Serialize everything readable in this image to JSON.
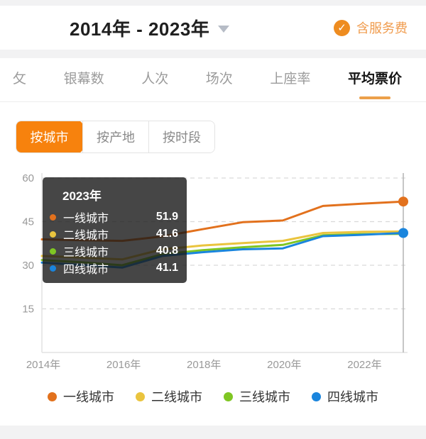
{
  "header": {
    "title": "2014年 - 2023年",
    "caret_icon": "dropdown-caret",
    "service_fee": {
      "label": "含服务费",
      "check_icon": "check-circle",
      "accent": "#ee8c20",
      "text_color": "#f09b4c"
    }
  },
  "tabs": {
    "items": [
      {
        "label": "攵",
        "active": false
      },
      {
        "label": "银幕数",
        "active": false
      },
      {
        "label": "人次",
        "active": false
      },
      {
        "label": "场次",
        "active": false
      },
      {
        "label": "上座率",
        "active": false
      },
      {
        "label": "平均票价",
        "active": true
      }
    ],
    "underline_color": "#eca04a"
  },
  "segmented": {
    "items": [
      {
        "label": "按城市",
        "active": true
      },
      {
        "label": "按产地",
        "active": false
      },
      {
        "label": "按时段",
        "active": false
      }
    ],
    "active_bg": "#f7820d"
  },
  "tooltip": {
    "title": "2023年",
    "rows": [
      {
        "name": "一线城市",
        "value": "51.9",
        "color": "#e2711d"
      },
      {
        "name": "二线城市",
        "value": "41.6",
        "color": "#eac43e"
      },
      {
        "name": "三线城市",
        "value": "40.8",
        "color": "#7fc623"
      },
      {
        "name": "四线城市",
        "value": "41.1",
        "color": "#1a85dd"
      }
    ]
  },
  "chart_data": {
    "type": "line",
    "title": "平均票价（按城市）2014-2023",
    "x": [
      2014,
      2015,
      2016,
      2017,
      2018,
      2019,
      2020,
      2021,
      2022,
      2023
    ],
    "x_ticks": [
      2014,
      2016,
      2018,
      2020,
      2022
    ],
    "x_tick_labels": [
      "2014年",
      "2016年",
      "2018年",
      "2020年",
      "2022年"
    ],
    "ylim": [
      0,
      60
    ],
    "y_ticks": [
      15,
      30,
      45,
      60
    ],
    "grid": "dashed-horizontal",
    "legend_position": "bottom",
    "hover_year": 2023,
    "series": [
      {
        "name": "一线城市",
        "color": "#e2711d",
        "end_dot": true,
        "values": [
          38.9,
          38.6,
          38.4,
          39.9,
          42.4,
          44.8,
          45.4,
          50.4,
          51.2,
          51.9
        ]
      },
      {
        "name": "二线城市",
        "color": "#eac43e",
        "end_dot": false,
        "values": [
          33.2,
          32.6,
          32.0,
          35.5,
          36.8,
          37.6,
          38.4,
          41.1,
          41.5,
          41.6
        ]
      },
      {
        "name": "三线城市",
        "color": "#7fc623",
        "end_dot": false,
        "values": [
          31.8,
          31.0,
          30.0,
          33.8,
          35.2,
          36.2,
          37.0,
          40.3,
          40.7,
          40.8
        ]
      },
      {
        "name": "四线城市",
        "color": "#1a85dd",
        "end_dot": true,
        "values": [
          30.9,
          30.1,
          29.2,
          33.2,
          34.5,
          35.5,
          35.8,
          40.0,
          40.5,
          41.1
        ]
      }
    ]
  },
  "legend": {
    "items": [
      {
        "label": "一线城市",
        "color": "#e2711d"
      },
      {
        "label": "二线城市",
        "color": "#eac43e"
      },
      {
        "label": "三线城市",
        "color": "#7fc623"
      },
      {
        "label": "四线城市",
        "color": "#1a85dd"
      }
    ]
  }
}
